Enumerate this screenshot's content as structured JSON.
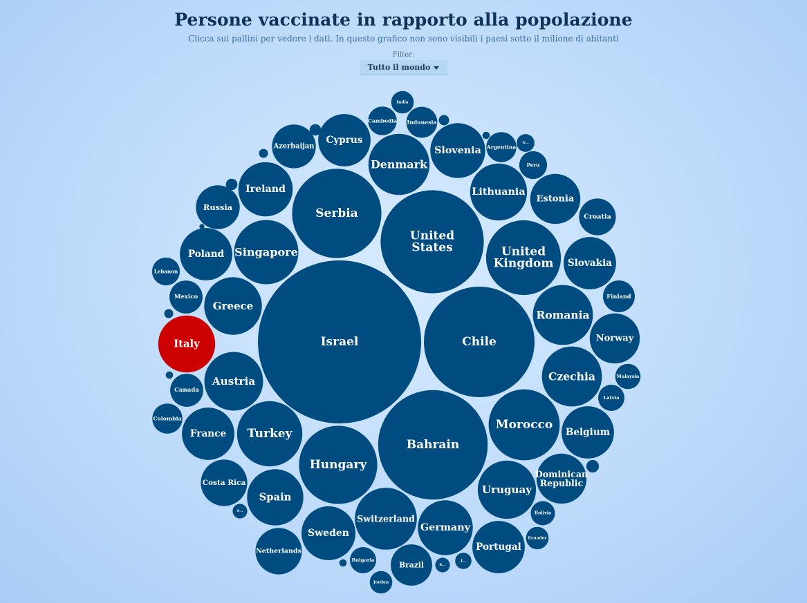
{
  "header": {
    "title": "Persone vaccinate in rapporto alla popolazione",
    "subtitle": "Clicca sui pallini per vedere i dati. In questo grafico non sono visibili i paesi sotto il milione di abitanti"
  },
  "filter": {
    "label": "Filter:",
    "selected": "Tutto il mondo"
  },
  "colors": {
    "bubble": "#004b80",
    "highlight": "#cc0000",
    "label": "#ffffff"
  },
  "chart_data": {
    "type": "bubble",
    "size_encoding": "vaccinated share of population (relative, approximate)",
    "highlighted": "Italy",
    "bubbles": [
      {
        "label": "Israel",
        "value": 100
      },
      {
        "label": "Chile",
        "value": 46
      },
      {
        "label": "United States",
        "value": 40
      },
      {
        "label": "Bahrain",
        "value": 45
      },
      {
        "label": "Serbia",
        "value": 30
      },
      {
        "label": "United Kingdom",
        "value": 21
      },
      {
        "label": "Hungary",
        "value": 23
      },
      {
        "label": "Morocco",
        "value": 19
      },
      {
        "label": "Romania",
        "value": 13.5
      },
      {
        "label": "Czechia",
        "value": 13.5
      },
      {
        "label": "Singapore",
        "value": 15.5
      },
      {
        "label": "Turkey",
        "value": 16
      },
      {
        "label": "Greece",
        "value": 12.5
      },
      {
        "label": "Austria",
        "value": 13
      },
      {
        "label": "Denmark",
        "value": 14
      },
      {
        "label": "Slovenia",
        "value": 11.3
      },
      {
        "label": "Lithuania",
        "value": 12.2
      },
      {
        "label": "Uruguay",
        "value": 12.7
      },
      {
        "label": "Germany",
        "value": 11.3
      },
      {
        "label": "Switzerland",
        "value": 14.4
      },
      {
        "label": "Poland",
        "value": 10.3
      },
      {
        "label": "Italy",
        "value": 12.2
      },
      {
        "label": "Spain",
        "value": 11.9
      },
      {
        "label": "France",
        "value": 10.3
      },
      {
        "label": "Ireland",
        "value": 11.1
      },
      {
        "label": "Cyprus",
        "value": 10.3
      },
      {
        "label": "Estonia",
        "value": 9.4
      },
      {
        "label": "Slovakia",
        "value": 10.3
      },
      {
        "label": "Norway",
        "value": 9.4
      },
      {
        "label": "Belgium",
        "value": 10.3
      },
      {
        "label": "Dominican Republic",
        "value": 9.4
      },
      {
        "label": "Portugal",
        "value": 10.3
      },
      {
        "label": "Sweden",
        "value": 10.9
      },
      {
        "label": "Costa Rica",
        "value": 8.1
      },
      {
        "label": "Netherlands",
        "value": 8.1
      },
      {
        "label": "Russia",
        "value": 7.2
      },
      {
        "label": "Azerbaijan",
        "value": 7.2
      },
      {
        "label": "Brazil",
        "value": 6.4
      },
      {
        "label": "Croatia",
        "value": 5.1
      },
      {
        "label": "Finland",
        "value": 3.8
      },
      {
        "label": "Mexico",
        "value": 4.1
      },
      {
        "label": "Canada",
        "value": 4.1
      },
      {
        "label": "Peru",
        "value": 2.9
      },
      {
        "label": "Argentina",
        "value": 3.4
      },
      {
        "label": "Indonesia",
        "value": 3.6
      },
      {
        "label": "Cambodia",
        "value": 3.1
      },
      {
        "label": "India",
        "value": 1.9
      },
      {
        "label": "Lebanon",
        "value": 2.9
      },
      {
        "label": "Colombia",
        "value": 3.4
      },
      {
        "label": "Latvia",
        "value": 2.6
      },
      {
        "label": "Malaysia",
        "value": 2.4
      },
      {
        "label": "Bolivia",
        "value": 2.2
      },
      {
        "label": "Ecuador",
        "value": 1.9
      },
      {
        "label": "Bulgaria",
        "value": 2.6
      },
      {
        "label": "Jordan",
        "value": 1.9
      },
      {
        "label": "N...",
        "value": 1.2
      },
      {
        "label": "S...",
        "value": 0.8
      },
      {
        "label": "K...",
        "value": 0.8
      },
      {
        "label": "J...",
        "value": 1.0
      },
      {
        "label": "",
        "value": 0.6
      },
      {
        "label": "",
        "value": 0.3
      },
      {
        "label": "",
        "value": 0.2
      },
      {
        "label": "",
        "value": 0.4
      },
      {
        "label": "",
        "value": 0.3
      },
      {
        "label": "",
        "value": 0.5
      },
      {
        "label": "",
        "value": 0.5
      },
      {
        "label": "",
        "value": 0.2
      },
      {
        "label": "",
        "value": 0.2
      },
      {
        "label": "",
        "value": 0.1
      }
    ]
  }
}
